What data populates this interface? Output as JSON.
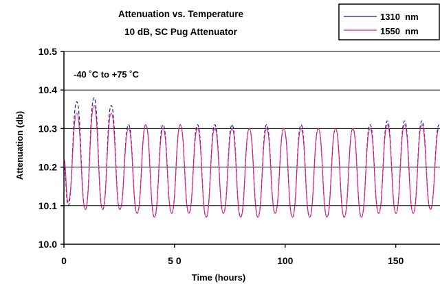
{
  "chart_data": {
    "type": "line",
    "title": "Attenuation vs. Temperature",
    "subtitle": "10 dB, SC Pug Attenuator",
    "xlabel": "Time   (hours)",
    "ylabel": "Attenuation (db)",
    "annotation": "-40 ˚C to +75 ˚C",
    "xlim": [
      0,
      170
    ],
    "ylim": [
      10.0,
      10.5
    ],
    "x_ticks": [
      0,
      50,
      100,
      150
    ],
    "x_tick_labels": [
      "0",
      "5 0",
      "100",
      "150"
    ],
    "y_ticks": [
      10.0,
      10.1,
      10.2,
      10.3,
      10.4,
      10.5
    ],
    "y_tick_labels": [
      "10.0",
      "10.1",
      "10.2",
      "10.3",
      "10.4",
      "10.5"
    ],
    "grid": "horizontal",
    "legend": "top-right",
    "series": [
      {
        "name": "1310  nm",
        "color": "#1a1a9c",
        "dash": "dashed",
        "x": [
          0,
          1.9,
          5.8,
          9.7,
          13.6,
          17.5,
          21.4,
          25.3,
          29.2,
          33.1,
          37.0,
          40.9,
          44.8,
          48.7,
          52.6,
          56.5,
          60.4,
          64.3,
          68.2,
          72.1,
          76.0,
          79.9,
          83.8,
          87.7,
          91.6,
          95.5,
          99.4,
          103.3,
          107.2,
          111.1,
          115.0,
          118.9,
          122.8,
          126.7,
          130.6,
          134.5,
          138.4,
          142.3,
          146.2,
          150.1,
          154.0,
          157.9,
          161.8,
          165.7,
          169.6
        ],
        "y": [
          10.2,
          10.1,
          10.37,
          10.09,
          10.38,
          10.09,
          10.36,
          10.09,
          10.31,
          10.08,
          10.31,
          10.07,
          10.31,
          10.08,
          10.31,
          10.08,
          10.31,
          10.07,
          10.31,
          10.08,
          10.31,
          10.07,
          10.3,
          10.07,
          10.31,
          10.08,
          10.3,
          10.07,
          10.31,
          10.07,
          10.3,
          10.07,
          10.3,
          10.07,
          10.3,
          10.07,
          10.31,
          10.08,
          10.32,
          10.08,
          10.32,
          10.08,
          10.32,
          10.09,
          10.31
        ]
      },
      {
        "name": "1550  nm",
        "color": "#e0207a",
        "dash": "solid",
        "x": [
          0,
          1.9,
          5.8,
          9.7,
          13.6,
          17.5,
          21.4,
          25.3,
          29.2,
          33.1,
          37.0,
          40.9,
          44.8,
          48.7,
          52.6,
          56.5,
          60.4,
          64.3,
          68.2,
          72.1,
          76.0,
          79.9,
          83.8,
          87.7,
          91.6,
          95.5,
          99.4,
          103.3,
          107.2,
          111.1,
          115.0,
          118.9,
          122.8,
          126.7,
          130.6,
          134.5,
          138.4,
          142.3,
          146.2,
          150.1,
          154.0,
          157.9,
          161.8,
          165.7,
          169.6
        ],
        "y": [
          10.22,
          10.11,
          10.34,
          10.09,
          10.36,
          10.09,
          10.34,
          10.09,
          10.3,
          10.08,
          10.31,
          10.07,
          10.3,
          10.08,
          10.31,
          10.08,
          10.3,
          10.07,
          10.3,
          10.08,
          10.3,
          10.07,
          10.3,
          10.07,
          10.3,
          10.08,
          10.3,
          10.07,
          10.3,
          10.07,
          10.3,
          10.07,
          10.3,
          10.07,
          10.3,
          10.07,
          10.3,
          10.08,
          10.31,
          10.08,
          10.31,
          10.08,
          10.31,
          10.09,
          10.3
        ]
      }
    ]
  }
}
